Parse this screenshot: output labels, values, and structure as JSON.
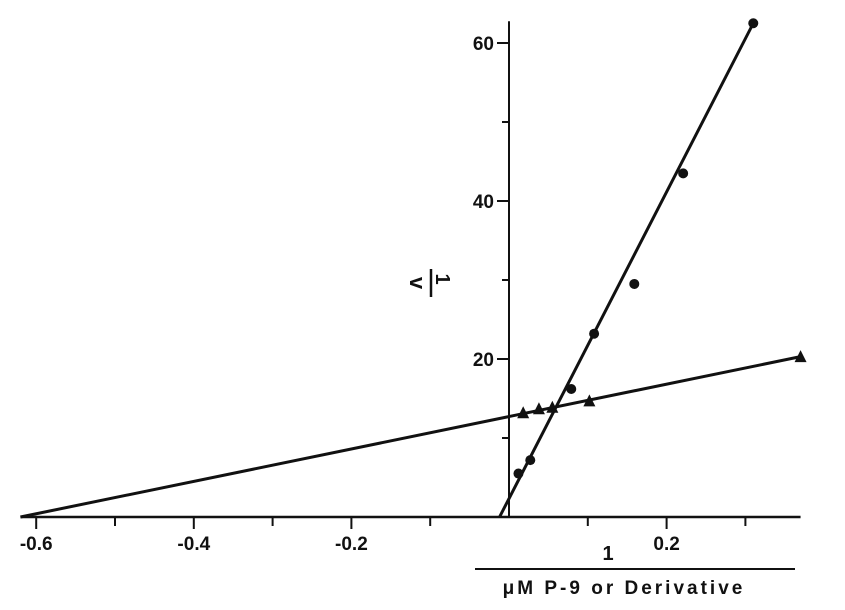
{
  "chart_data": {
    "type": "scatter",
    "title": "",
    "xlabel_numerator": "1",
    "xlabel": "μM P-9 or Derivative",
    "ylabel_numerator": "1",
    "ylabel": "v",
    "xlim": [
      -0.62,
      0.37
    ],
    "ylim": [
      0,
      62
    ],
    "x_ticks": [
      -0.6,
      -0.4,
      -0.2,
      0.2
    ],
    "x_tick_labels": [
      "-0.6",
      "-0.4",
      "-0.2",
      "0.2"
    ],
    "y_ticks": [
      20,
      40,
      60
    ],
    "y_tick_labels": [
      "20",
      "40",
      "60"
    ],
    "grid": false,
    "series": [
      {
        "marker": "circle",
        "points": [
          [
            0.012,
            5.5
          ],
          [
            0.027,
            7.2
          ],
          [
            0.079,
            16.2
          ],
          [
            0.108,
            23.2
          ],
          [
            0.159,
            29.5
          ],
          [
            0.221,
            43.5
          ],
          [
            0.31,
            62.5
          ]
        ],
        "fit": [
          [
            -0.012,
            0
          ],
          [
            0.31,
            62.5
          ]
        ]
      },
      {
        "marker": "triangle",
        "points": [
          [
            0.018,
            13.2
          ],
          [
            0.038,
            13.7
          ],
          [
            0.055,
            13.9
          ],
          [
            0.102,
            14.7
          ],
          [
            0.37,
            20.3
          ]
        ],
        "fit": [
          [
            -0.62,
            0
          ],
          [
            0.37,
            20.3
          ]
        ]
      }
    ]
  }
}
